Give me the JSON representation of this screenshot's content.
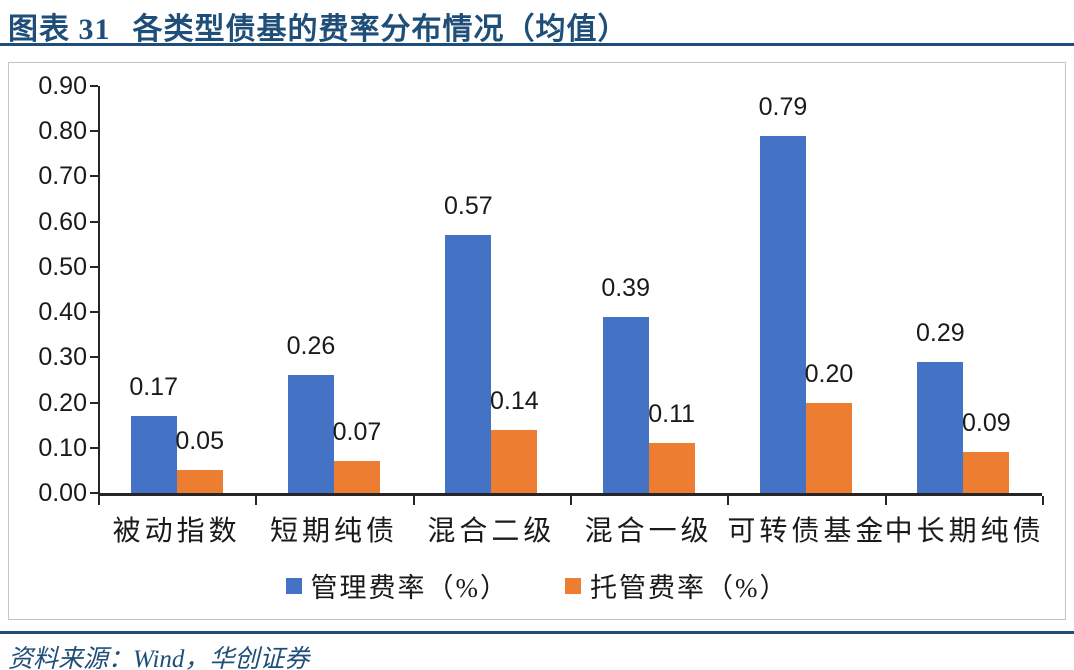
{
  "figure": {
    "label": "图表 31",
    "title": "各类型债基的费率分布情况（均值）",
    "source": "资料来源：Wind，华创证券"
  },
  "colors": {
    "accent_navy": "#1F4E79",
    "management_blue": "#4472C4",
    "custody_orange": "#ED7D31",
    "axis": "#262626"
  },
  "chart_data": {
    "type": "bar",
    "title": "各类型债基的费率分布情况（均值）",
    "categories": [
      "被动指数",
      "短期纯债",
      "混合二级",
      "混合一级",
      "可转债基金",
      "中长期纯债"
    ],
    "series": [
      {
        "name": "管理费率（%）",
        "color": "#4472C4",
        "values": [
          0.17,
          0.26,
          0.57,
          0.39,
          0.79,
          0.29
        ]
      },
      {
        "name": "托管费率（%）",
        "color": "#ED7D31",
        "values": [
          0.05,
          0.07,
          0.14,
          0.11,
          0.2,
          0.09
        ]
      }
    ],
    "data_labels": [
      [
        "0.17",
        "0.26",
        "0.57",
        "0.39",
        "0.79",
        "0.29"
      ],
      [
        "0.05",
        "0.07",
        "0.14",
        "0.11",
        "0.20",
        "0.09"
      ]
    ],
    "xlabel": "",
    "ylabel": "",
    "ylim": [
      0.0,
      0.9
    ],
    "ytick_step": 0.1,
    "ytick_labels": [
      "0.00",
      "0.10",
      "0.20",
      "0.30",
      "0.40",
      "0.50",
      "0.60",
      "0.70",
      "0.80",
      "0.90"
    ],
    "grid": false,
    "legend_position": "bottom"
  }
}
